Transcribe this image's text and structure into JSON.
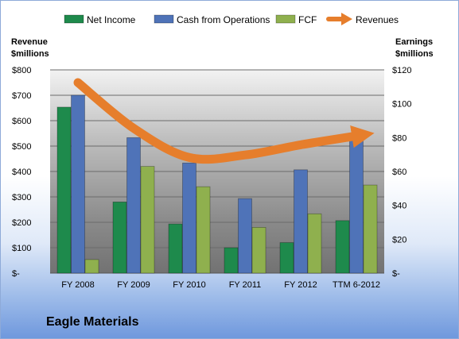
{
  "chart_data": {
    "type": "bar",
    "title": "Eagle Materials",
    "categories": [
      "FY 2008",
      "FY 2009",
      "FY 2010",
      "FY 2011",
      "FY 2012",
      "TTM 6-2012"
    ],
    "left_axis": {
      "label_line1": "Revenue",
      "label_line2": "$millions",
      "ylim": [
        0,
        800
      ],
      "ticks": [
        0,
        100,
        200,
        300,
        400,
        500,
        600,
        700,
        800
      ],
      "tick_labels": [
        "$-",
        "$100",
        "$200",
        "$300",
        "$400",
        "$500",
        "$600",
        "$700",
        "$800"
      ]
    },
    "right_axis": {
      "label_line1": "Earnings",
      "label_line2": "$millions",
      "ylim": [
        0,
        120
      ],
      "ticks": [
        0,
        20,
        40,
        60,
        80,
        100,
        120
      ],
      "tick_labels": [
        "$-",
        "$20",
        "$40",
        "$60",
        "$80",
        "$100",
        "$120"
      ]
    },
    "series": [
      {
        "name": "Net Income",
        "kind": "bar",
        "axis": "right",
        "color": "#1e8a4c",
        "values": [
          98,
          42,
          29,
          15,
          18,
          31
        ]
      },
      {
        "name": "Cash from Operations",
        "kind": "bar",
        "axis": "right",
        "color": "#4f73b8",
        "values": [
          105,
          80,
          65,
          44,
          61,
          79
        ]
      },
      {
        "name": "FCF",
        "kind": "bar",
        "axis": "right",
        "color": "#8fb04e",
        "values": [
          8,
          63,
          51,
          27,
          35,
          52
        ]
      },
      {
        "name": "Revenues",
        "kind": "line",
        "axis": "left",
        "color": "#e67e2c",
        "values": [
          750,
          570,
          455,
          465,
          505,
          540
        ]
      }
    ],
    "grid": true,
    "legend_position": "top"
  }
}
